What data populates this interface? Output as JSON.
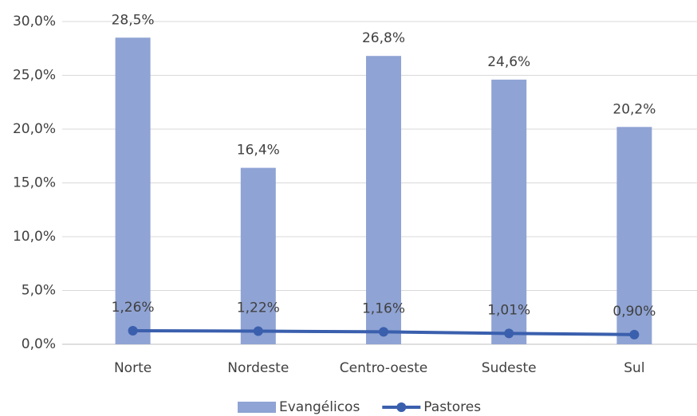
{
  "chart_data": {
    "type": "bar",
    "categories": [
      "Norte",
      "Nordeste",
      "Centro-oeste",
      "Sudeste",
      "Sul"
    ],
    "series": [
      {
        "name": "Evangélicos",
        "type": "bar",
        "color": "#8fa3d4",
        "values": [
          28.5,
          16.4,
          26.8,
          24.6,
          20.2
        ],
        "value_labels": [
          "28,5%",
          "16,4%",
          "26,8%",
          "24,6%",
          "20,2%"
        ]
      },
      {
        "name": "Pastores",
        "type": "line",
        "color": "#3a5fad",
        "values": [
          1.26,
          1.22,
          1.16,
          1.01,
          0.9
        ],
        "value_labels": [
          "1,26%",
          "1,22%",
          "1,16%",
          "1,01%",
          "0,90%"
        ]
      }
    ],
    "ylim": [
      0,
      30
    ],
    "yticks": [
      {
        "value": 0,
        "label": "0,0%"
      },
      {
        "value": 5,
        "label": "5,0%"
      },
      {
        "value": 10,
        "label": "10,0%"
      },
      {
        "value": 15,
        "label": "15,0%"
      },
      {
        "value": 20,
        "label": "20,0%"
      },
      {
        "value": 25,
        "label": "25,0%"
      },
      {
        "value": 30,
        "label": "30,0%"
      }
    ],
    "grid": true,
    "legend": "bottom"
  }
}
